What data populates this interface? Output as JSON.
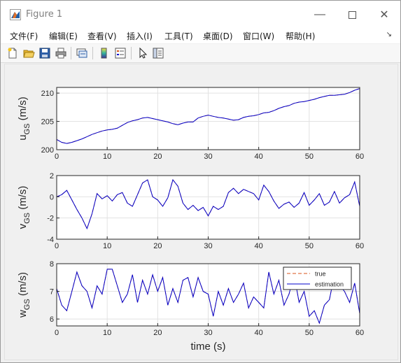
{
  "window": {
    "title": "Figure 1"
  },
  "menu": {
    "items": [
      "文件(F)",
      "编辑(E)",
      "查看(V)",
      "插入(I)",
      "工具(T)",
      "桌面(D)",
      "窗口(W)",
      "帮助(H)"
    ]
  },
  "toolbar": {
    "icons": [
      "new-figure-icon",
      "open-file-icon",
      "save-icon",
      "print-icon",
      "link-icon",
      "colorbar-icon",
      "legend-icon",
      "pointer-icon",
      "property-editor-icon"
    ]
  },
  "colors": {
    "true_series": "#d95319",
    "estimation_series": "#0000cd"
  },
  "chart_data": [
    {
      "type": "line",
      "ylabel_main": "u",
      "ylabel_sub": "GS",
      "ylabel_unit": "(m/s)",
      "xlim": [
        0,
        60
      ],
      "ylim": [
        200,
        211
      ],
      "xticks": [
        "0",
        "10",
        "20",
        "30",
        "40",
        "50",
        "60"
      ],
      "yticks": [
        "200",
        "205",
        "210"
      ],
      "ytick_values": [
        200,
        205,
        210
      ],
      "grid": true,
      "series": [
        {
          "x": [
            0,
            1,
            2,
            3,
            4,
            5,
            6,
            7,
            8,
            9,
            10,
            11,
            12,
            13,
            14,
            15,
            16,
            17,
            18,
            19,
            20,
            21,
            22,
            23,
            24,
            25,
            26,
            27,
            28,
            29,
            30,
            31,
            32,
            33,
            34,
            35,
            36,
            37,
            38,
            39,
            40,
            41,
            42,
            43,
            44,
            45,
            46,
            47,
            48,
            49,
            50,
            51,
            52,
            53,
            54,
            55,
            56,
            57,
            58,
            59,
            60
          ],
          "y": [
            201.8,
            201.3,
            201.1,
            201.3,
            201.6,
            201.9,
            202.3,
            202.7,
            203.0,
            203.3,
            203.5,
            203.6,
            203.8,
            204.3,
            204.8,
            205.1,
            205.3,
            205.6,
            205.7,
            205.5,
            205.3,
            205.1,
            204.9,
            204.6,
            204.4,
            204.7,
            204.9,
            204.9,
            205.6,
            205.9,
            206.1,
            205.9,
            205.7,
            205.6,
            205.4,
            205.2,
            205.3,
            205.7,
            205.9,
            206.0,
            206.2,
            206.5,
            206.6,
            206.9,
            207.3,
            207.6,
            207.8,
            208.2,
            208.4,
            208.5,
            208.7,
            208.9,
            209.2,
            209.4,
            209.6,
            209.6,
            209.7,
            209.8,
            210.1,
            210.5,
            210.8
          ]
        },
        {
          "x": [
            0,
            1,
            2,
            3,
            4,
            5,
            6,
            7,
            8,
            9,
            10,
            11,
            12,
            13,
            14,
            15,
            16,
            17,
            18,
            19,
            20,
            21,
            22,
            23,
            24,
            25,
            26,
            27,
            28,
            29,
            30,
            31,
            32,
            33,
            34,
            35,
            36,
            37,
            38,
            39,
            40,
            41,
            42,
            43,
            44,
            45,
            46,
            47,
            48,
            49,
            50,
            51,
            52,
            53,
            54,
            55,
            56,
            57,
            58,
            59,
            60
          ],
          "y": [
            201.8,
            201.3,
            201.1,
            201.3,
            201.6,
            201.9,
            202.3,
            202.7,
            203.0,
            203.3,
            203.5,
            203.6,
            203.8,
            204.3,
            204.8,
            205.1,
            205.3,
            205.6,
            205.7,
            205.5,
            205.3,
            205.1,
            204.9,
            204.6,
            204.4,
            204.7,
            204.9,
            204.9,
            205.6,
            205.9,
            206.1,
            205.9,
            205.7,
            205.6,
            205.4,
            205.2,
            205.3,
            205.7,
            205.9,
            206.0,
            206.2,
            206.5,
            206.6,
            206.9,
            207.3,
            207.6,
            207.8,
            208.2,
            208.4,
            208.5,
            208.7,
            208.9,
            209.2,
            209.4,
            209.6,
            209.6,
            209.7,
            209.8,
            210.1,
            210.5,
            210.8
          ]
        }
      ]
    },
    {
      "type": "line",
      "ylabel_main": "v",
      "ylabel_sub": "GS",
      "ylabel_unit": "(m/s)",
      "xlim": [
        0,
        60
      ],
      "ylim": [
        -4,
        2
      ],
      "xticks": [
        "0",
        "10",
        "20",
        "30",
        "40",
        "50",
        "60"
      ],
      "yticks": [
        "-4",
        "-2",
        "0",
        "2"
      ],
      "ytick_values": [
        -4,
        -2,
        0,
        2
      ],
      "grid": true,
      "series": [
        {
          "x": [
            0,
            1,
            2,
            3,
            4,
            5,
            6,
            7,
            8,
            9,
            10,
            11,
            12,
            13,
            14,
            15,
            16,
            17,
            18,
            19,
            20,
            21,
            22,
            23,
            24,
            25,
            26,
            27,
            28,
            29,
            30,
            31,
            32,
            33,
            34,
            35,
            36,
            37,
            38,
            39,
            40,
            41,
            42,
            43,
            44,
            45,
            46,
            47,
            48,
            49,
            50,
            51,
            52,
            53,
            54,
            55,
            56,
            57,
            58,
            59,
            60
          ],
          "y": [
            0.0,
            0.2,
            0.6,
            -0.3,
            -1.2,
            -2.0,
            -3.0,
            -1.6,
            0.3,
            -0.2,
            0.1,
            -0.4,
            0.2,
            0.4,
            -0.6,
            -0.9,
            0.2,
            1.3,
            1.6,
            0.0,
            -0.3,
            -0.9,
            -0.1,
            1.6,
            1.0,
            -0.6,
            -1.2,
            -0.8,
            -1.3,
            -1.0,
            -1.8,
            -0.9,
            -1.2,
            -0.9,
            0.4,
            0.8,
            0.3,
            0.7,
            0.5,
            0.3,
            -0.3,
            1.1,
            0.5,
            -0.4,
            -1.1,
            -0.7,
            -0.5,
            -1.0,
            -0.6,
            0.4,
            -0.8,
            -0.3,
            0.3,
            -0.8,
            -0.5,
            0.5,
            -0.6,
            -0.1,
            0.2,
            1.4,
            -0.9
          ]
        },
        {
          "x": [
            0,
            1,
            2,
            3,
            4,
            5,
            6,
            7,
            8,
            9,
            10,
            11,
            12,
            13,
            14,
            15,
            16,
            17,
            18,
            19,
            20,
            21,
            22,
            23,
            24,
            25,
            26,
            27,
            28,
            29,
            30,
            31,
            32,
            33,
            34,
            35,
            36,
            37,
            38,
            39,
            40,
            41,
            42,
            43,
            44,
            45,
            46,
            47,
            48,
            49,
            50,
            51,
            52,
            53,
            54,
            55,
            56,
            57,
            58,
            59,
            60
          ],
          "y": [
            0.0,
            0.2,
            0.6,
            -0.3,
            -1.2,
            -2.0,
            -3.0,
            -1.6,
            0.3,
            -0.2,
            0.1,
            -0.4,
            0.2,
            0.4,
            -0.6,
            -0.9,
            0.2,
            1.3,
            1.6,
            0.0,
            -0.3,
            -0.9,
            -0.1,
            1.6,
            1.0,
            -0.6,
            -1.2,
            -0.8,
            -1.3,
            -1.0,
            -1.8,
            -0.9,
            -1.2,
            -0.9,
            0.4,
            0.8,
            0.3,
            0.7,
            0.5,
            0.3,
            -0.3,
            1.1,
            0.5,
            -0.4,
            -1.1,
            -0.7,
            -0.5,
            -1.0,
            -0.6,
            0.4,
            -0.8,
            -0.3,
            0.3,
            -0.8,
            -0.5,
            0.5,
            -0.6,
            -0.1,
            0.2,
            1.4,
            -0.9
          ]
        }
      ]
    },
    {
      "type": "line",
      "ylabel_main": "w",
      "ylabel_sub": "GS",
      "ylabel_unit": "(m/s)",
      "xlabel": "time (s)",
      "xlim": [
        0,
        60
      ],
      "ylim": [
        5.75,
        8
      ],
      "xticks": [
        "0",
        "10",
        "20",
        "30",
        "40",
        "50",
        "60"
      ],
      "yticks": [
        "6",
        "7",
        "8"
      ],
      "ytick_values": [
        6,
        7,
        8
      ],
      "grid": true,
      "legend": "top-right",
      "series": [
        {
          "name": "true",
          "x": [
            0,
            1,
            2,
            3,
            4,
            5,
            6,
            7,
            8,
            9,
            10,
            11,
            12,
            13,
            14,
            15,
            16,
            17,
            18,
            19,
            20,
            21,
            22,
            23,
            24,
            25,
            26,
            27,
            28,
            29,
            30,
            31,
            32,
            33,
            34,
            35,
            36,
            37,
            38,
            39,
            40,
            41,
            42,
            43,
            44,
            45,
            46,
            47,
            48,
            49,
            50,
            51,
            52,
            53,
            54,
            55,
            56,
            57,
            58,
            59,
            60
          ],
          "y": [
            7.1,
            6.5,
            6.3,
            7.0,
            7.7,
            7.2,
            7.0,
            6.4,
            7.2,
            6.9,
            7.8,
            7.8,
            7.2,
            6.6,
            6.9,
            7.6,
            6.6,
            7.4,
            6.9,
            7.6,
            7.0,
            7.5,
            6.5,
            7.1,
            6.6,
            7.4,
            7.5,
            6.8,
            7.5,
            7.0,
            6.9,
            6.1,
            7.0,
            6.5,
            7.1,
            6.6,
            6.9,
            7.3,
            6.4,
            6.8,
            6.6,
            6.4,
            7.7,
            6.9,
            7.4,
            6.5,
            6.9,
            7.6,
            6.6,
            7.0,
            6.1,
            6.3,
            5.85,
            6.5,
            6.7,
            7.6,
            7.2,
            7.0,
            6.6,
            7.3,
            6.2
          ]
        },
        {
          "name": "estimation",
          "x": [
            0,
            1,
            2,
            3,
            4,
            5,
            6,
            7,
            8,
            9,
            10,
            11,
            12,
            13,
            14,
            15,
            16,
            17,
            18,
            19,
            20,
            21,
            22,
            23,
            24,
            25,
            26,
            27,
            28,
            29,
            30,
            31,
            32,
            33,
            34,
            35,
            36,
            37,
            38,
            39,
            40,
            41,
            42,
            43,
            44,
            45,
            46,
            47,
            48,
            49,
            50,
            51,
            52,
            53,
            54,
            55,
            56,
            57,
            58,
            59,
            60
          ],
          "y": [
            7.1,
            6.5,
            6.3,
            7.0,
            7.7,
            7.2,
            7.0,
            6.4,
            7.2,
            6.9,
            7.8,
            7.8,
            7.2,
            6.6,
            6.9,
            7.6,
            6.6,
            7.4,
            6.9,
            7.6,
            7.0,
            7.5,
            6.5,
            7.1,
            6.6,
            7.4,
            7.5,
            6.8,
            7.5,
            7.0,
            6.9,
            6.1,
            7.0,
            6.5,
            7.1,
            6.6,
            6.9,
            7.3,
            6.4,
            6.8,
            6.6,
            6.4,
            7.7,
            6.9,
            7.4,
            6.5,
            6.9,
            7.6,
            6.6,
            7.0,
            6.1,
            6.3,
            5.85,
            6.5,
            6.7,
            7.6,
            7.2,
            7.0,
            6.6,
            7.3,
            6.2
          ]
        }
      ]
    }
  ]
}
